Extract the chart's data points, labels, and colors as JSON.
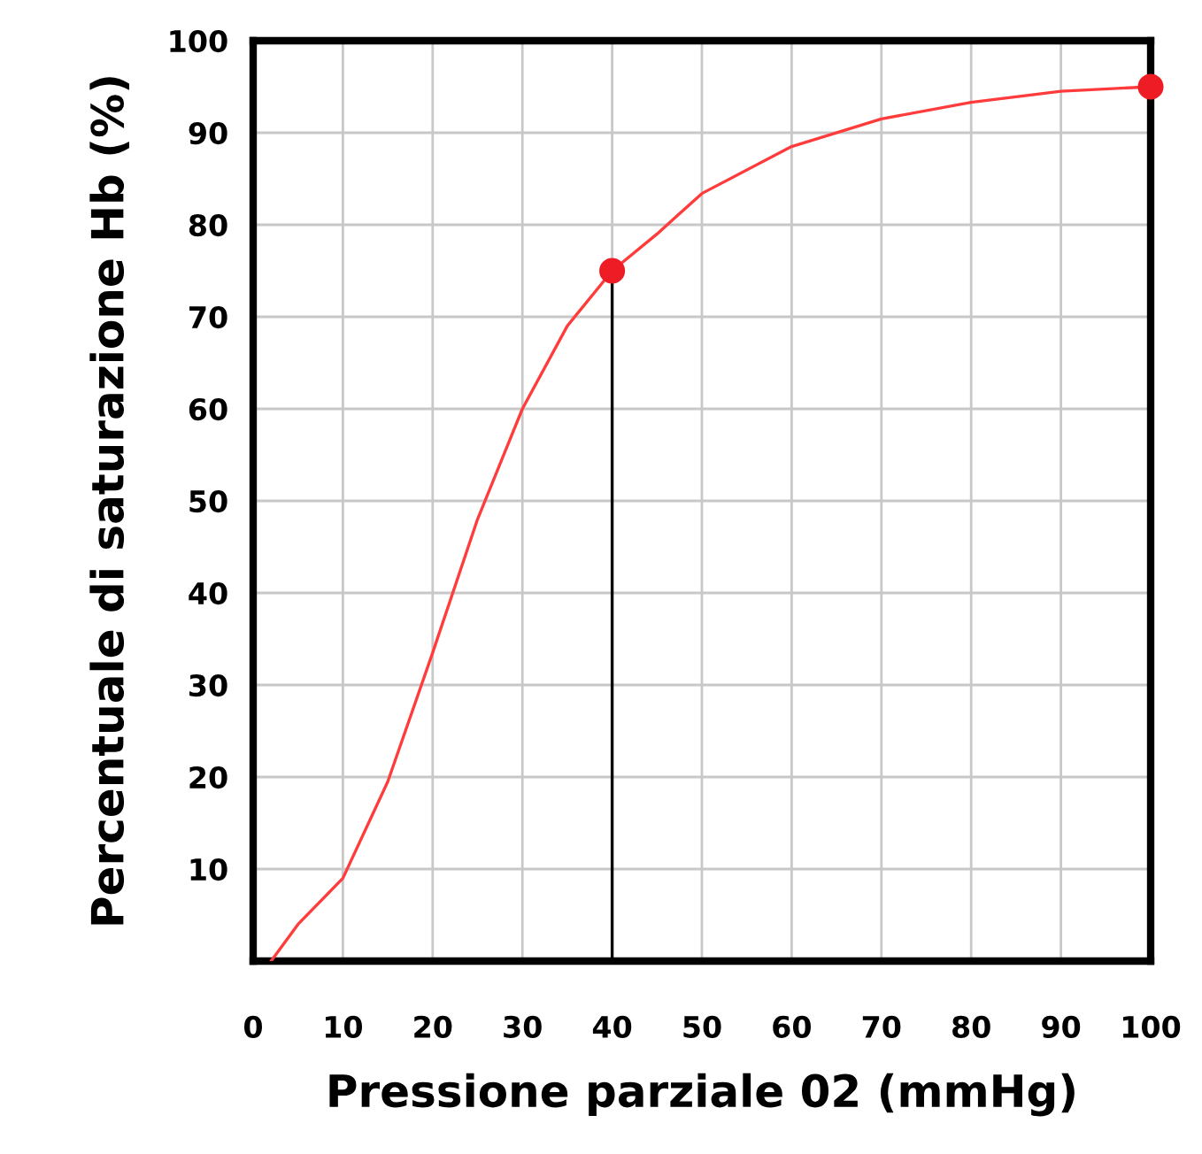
{
  "chart_data": {
    "type": "line",
    "xlabel": "Pressione parziale 02 (mmHg)",
    "ylabel": "Percentuale di saturazione Hb (%)",
    "series": [
      {
        "color": "#ff3b3b",
        "x": [
          2,
          5,
          10,
          15,
          20,
          25,
          30,
          35,
          40,
          45,
          50,
          60,
          70,
          80,
          90,
          100
        ],
        "values": [
          0,
          4,
          9,
          19.5,
          33.5,
          48,
          60,
          69,
          75,
          79,
          83.4,
          88.5,
          91.5,
          93.3,
          94.5,
          95
        ],
        "marker": "none"
      },
      {
        "type": "line",
        "color": "#000000",
        "x": [
          40,
          40
        ],
        "values": [
          0,
          75
        ],
        "marker": "none"
      },
      {
        "type": "scatter",
        "color": "#ee1c25",
        "x": [
          40,
          100
        ],
        "values": [
          75,
          95
        ],
        "marker": "circle"
      }
    ],
    "xlim": [
      0,
      100
    ],
    "ylim": [
      0,
      100
    ],
    "xticks": [
      0,
      10,
      20,
      30,
      40,
      50,
      60,
      70,
      80,
      90,
      100
    ],
    "yticks": [
      {
        "value": 0,
        "label": null
      },
      10,
      20,
      30,
      40,
      50,
      60,
      70,
      80,
      90,
      100
    ],
    "grid": true,
    "legend": false
  }
}
